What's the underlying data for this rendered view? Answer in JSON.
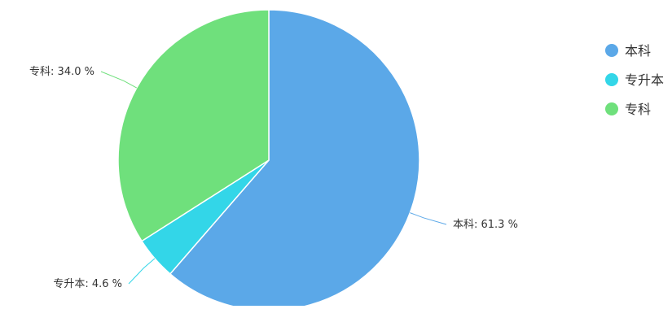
{
  "chart_data": {
    "type": "pie",
    "title": "",
    "slices": [
      {
        "label": "本科",
        "value": 61.3,
        "display": "本科: 61.3 %",
        "color": "#5BA8E8"
      },
      {
        "label": "专升本",
        "value": 4.6,
        "display": "专升本: 4.6 %",
        "color": "#33D6E8"
      },
      {
        "label": "专科",
        "value": 34.0,
        "display": "专科: 34.0 %",
        "color": "#6FE07C"
      }
    ],
    "legend": {
      "position": "top-right",
      "items": [
        {
          "label": "本科",
          "color": "#5BA8E8"
        },
        {
          "label": "专升本",
          "color": "#33D6E8"
        },
        {
          "label": "专科",
          "color": "#6FE07C"
        }
      ]
    },
    "start_angle": "12 o'clock",
    "direction": "clockwise"
  }
}
